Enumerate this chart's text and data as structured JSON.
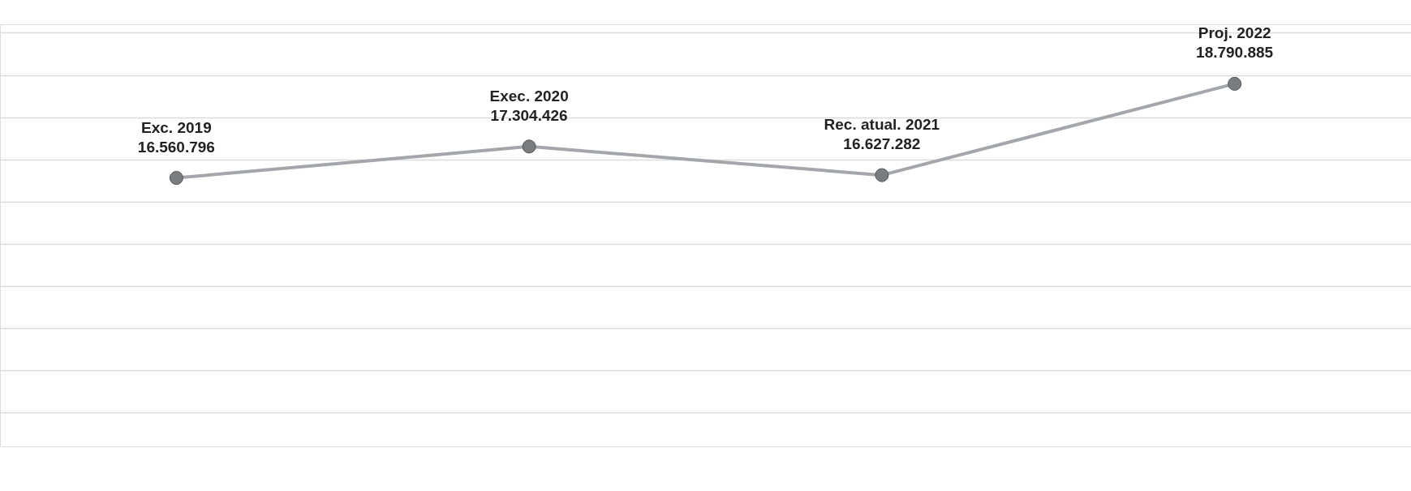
{
  "chart_data": {
    "type": "line",
    "categories": [
      "Exc. 2019",
      "Exec. 2020",
      "Rec. atual. 2021",
      "Proj. 2022"
    ],
    "series": [
      {
        "color": "#a3a7ab",
        "values": [
          16560796,
          17304426,
          16627282,
          18790885
        ],
        "value_labels": [
          "16.560.796",
          "17.304.426",
          "16.627.282",
          "18.790.885"
        ]
      }
    ],
    "ylim": [
      10200000,
      20200000
    ],
    "grid": "y",
    "tick_labels": false,
    "marker": "circle",
    "line_style": "solid"
  }
}
